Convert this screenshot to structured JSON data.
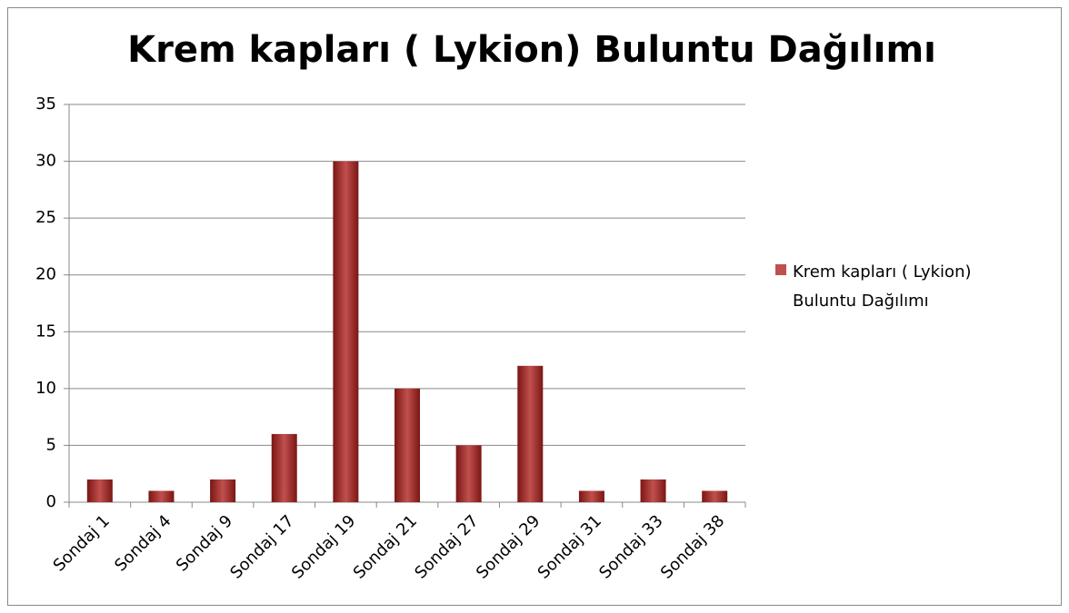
{
  "chart_data": {
    "type": "bar",
    "title": "Krem kapları ( Lykion) Buluntu Dağılımı",
    "categories": [
      "Sondaj 1",
      "Sondaj 4",
      "Sondaj 9",
      "Sondaj 17",
      "Sondaj 19",
      "Sondaj 21",
      "Sondaj 27",
      "Sondaj 29",
      "Sondaj 31",
      "Sondaj 33",
      "Sondaj 38"
    ],
    "series": [
      {
        "name": "Krem kapları ( Lykion) Buluntu Dağılımı",
        "color": "#c0504d",
        "values": [
          2,
          1,
          2,
          6,
          30,
          10,
          5,
          12,
          1,
          2,
          1
        ]
      }
    ],
    "ylim": [
      0,
      35
    ],
    "yticks": [
      0,
      5,
      10,
      15,
      20,
      25,
      30,
      35
    ],
    "grid": true,
    "legend": "right"
  }
}
